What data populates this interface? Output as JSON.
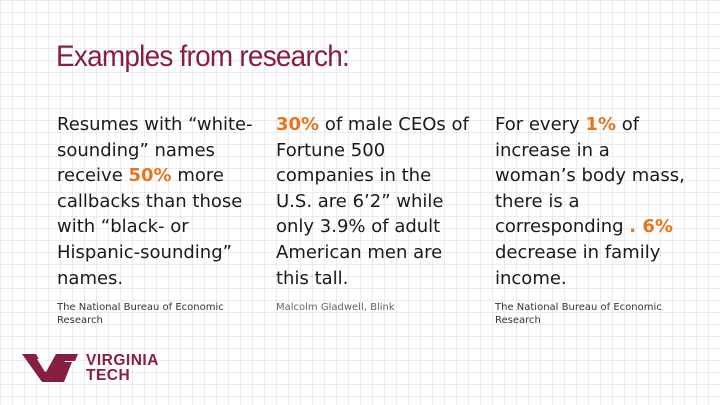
{
  "slide": {
    "title": "Examples from research:"
  },
  "columns": [
    {
      "parts": [
        "Resumes with “white-sounding” names receive ",
        "50%",
        " more callbacks than those with “black- or Hispanic-sounding” names."
      ],
      "source": "The National Bureau of Economic Research"
    },
    {
      "parts": [
        "30%",
        " of male CEOs of Fortune 500 companies in the U.S. are 6’2” while only 3.9% of adult American men are this tall."
      ],
      "source": "Malcolm Gladwell, Blink"
    },
    {
      "parts": [
        "For every ",
        "1%",
        " of increase in a woman’s body mass, there is a corresponding ",
        ". 6%",
        " decrease in family income."
      ],
      "source": "The National Bureau of Economic Research"
    }
  ],
  "logo": {
    "line1": "VIRGINIA",
    "line2": "TECH"
  },
  "colors": {
    "title": "#861f41",
    "highlight": "#e5751f",
    "logo": "#861f41"
  }
}
